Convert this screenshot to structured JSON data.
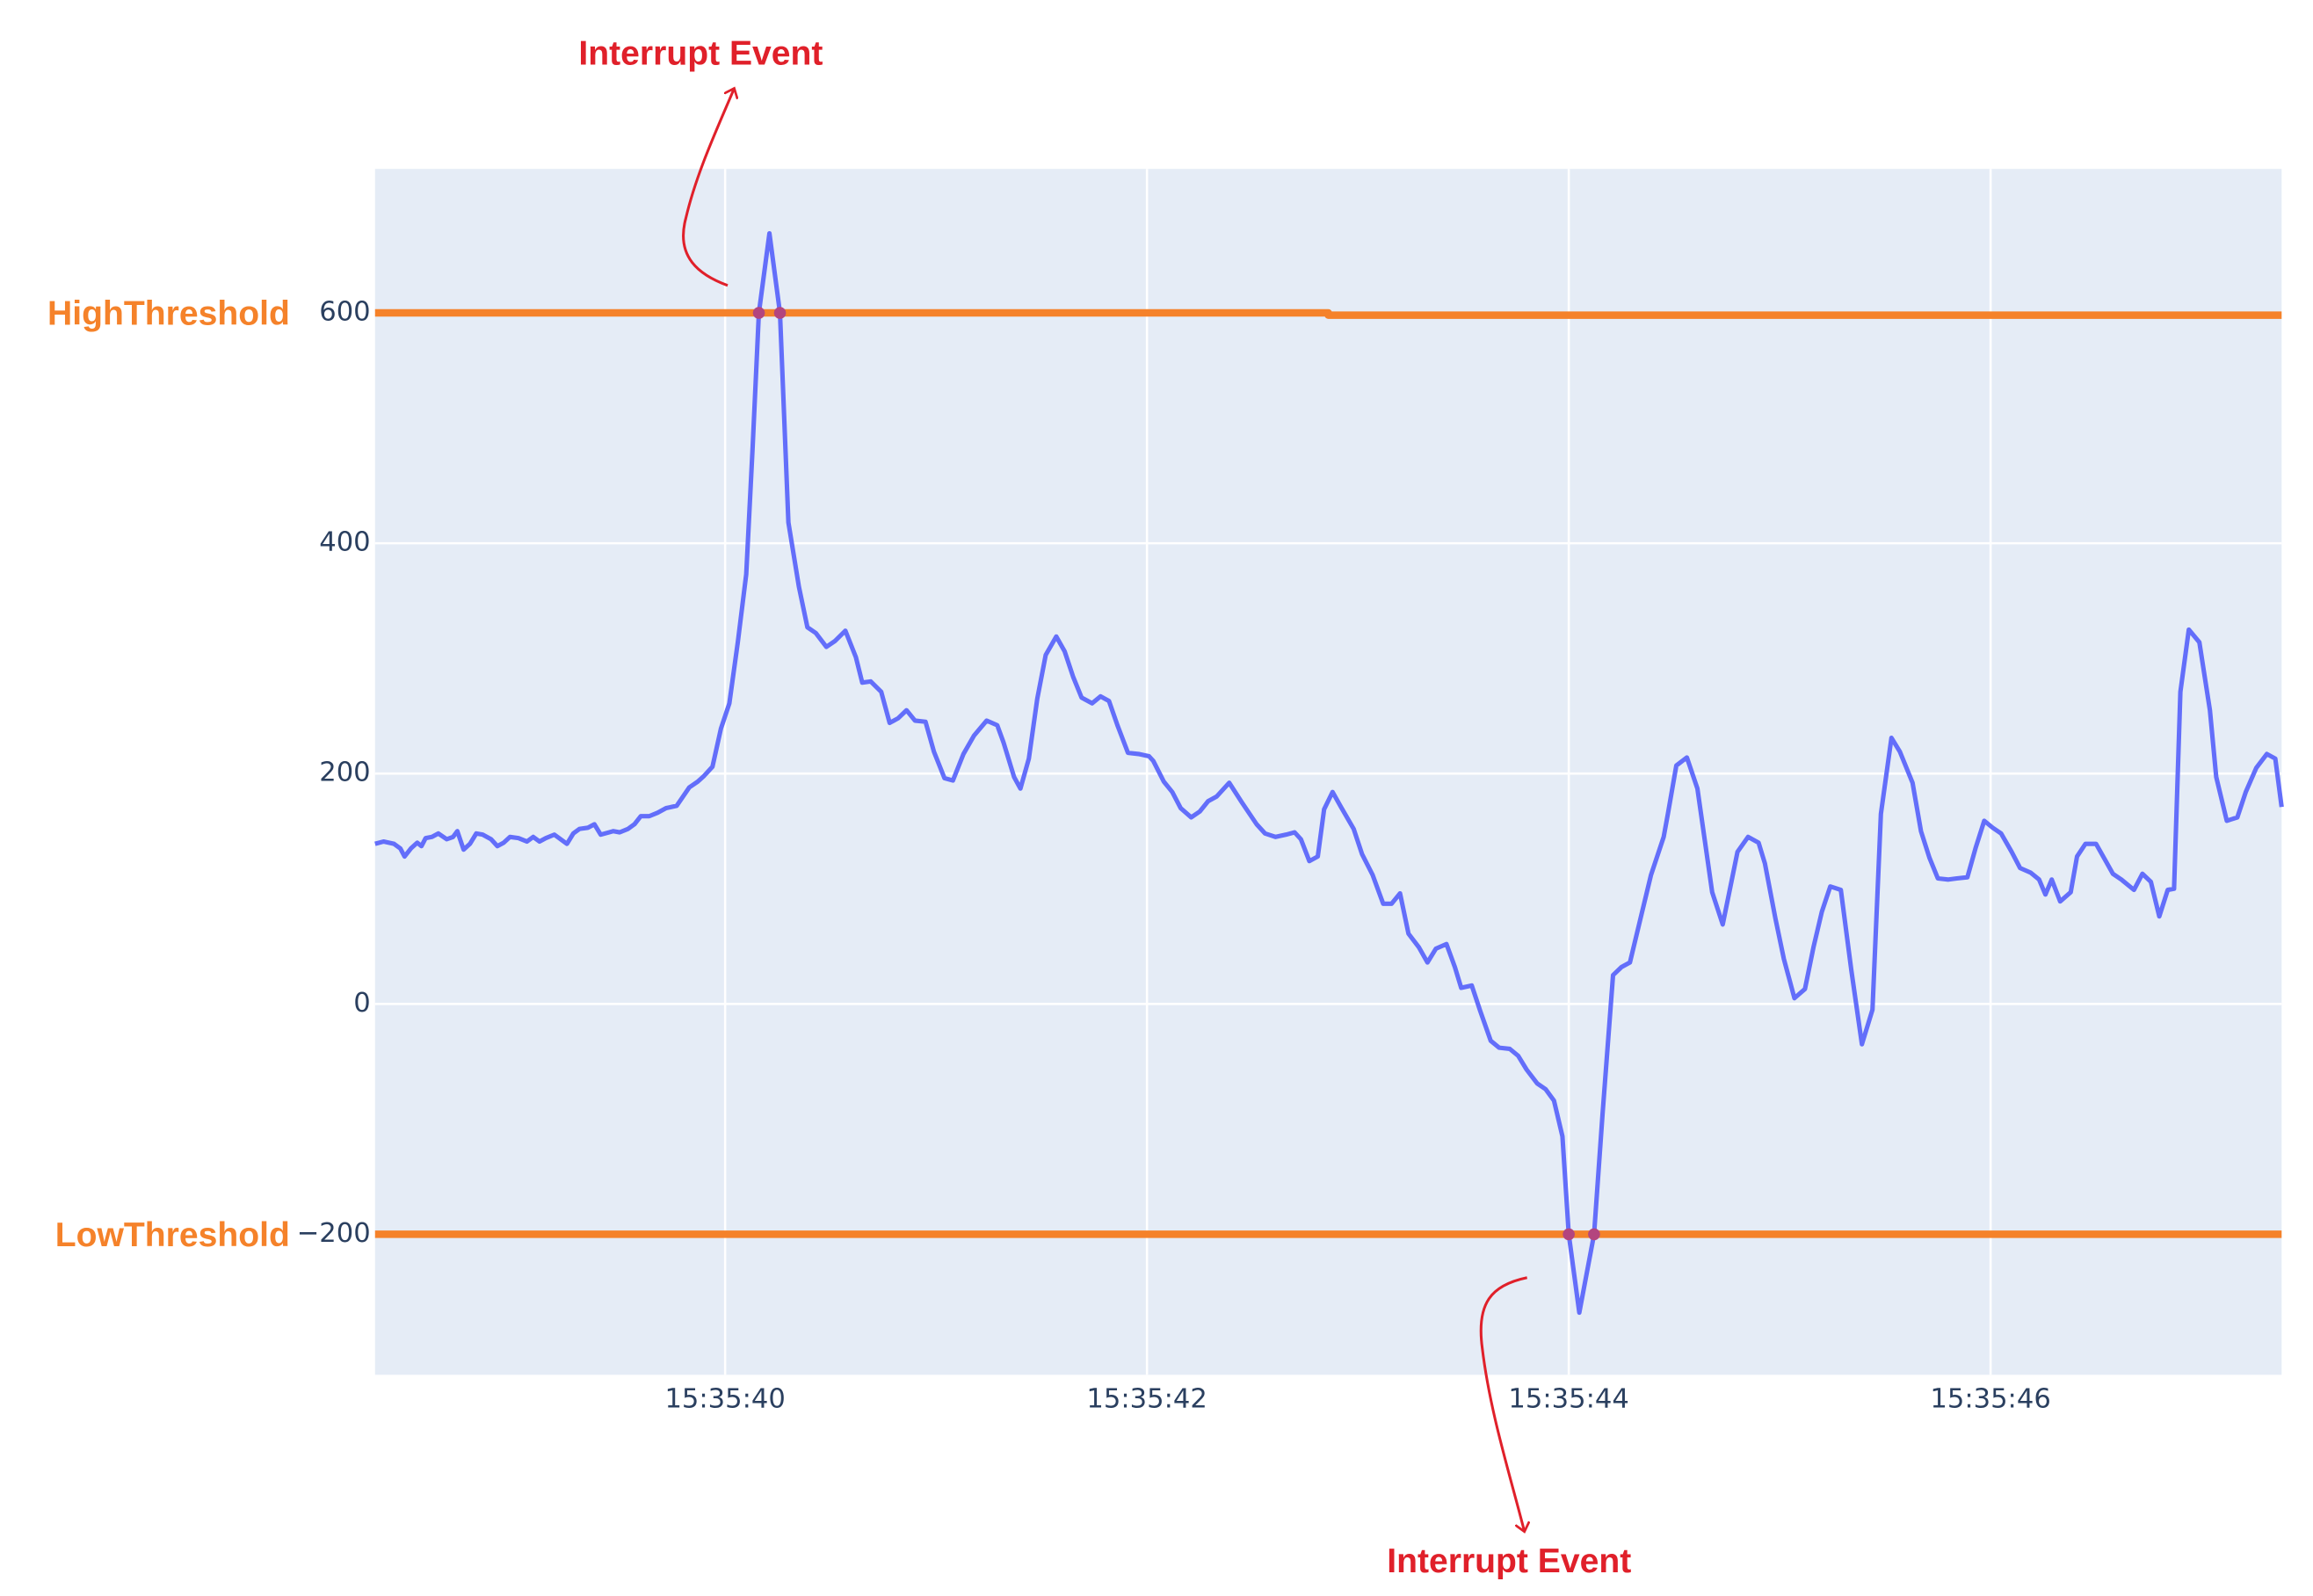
{
  "chart_data": {
    "type": "line",
    "xlim": [
      "15:35:38.34",
      "15:35:47.38"
    ],
    "xticks": [
      "15:35:40",
      "15:35:42",
      "15:35:44",
      "15:35:46"
    ],
    "ylim": [
      -322,
      725
    ],
    "yticks": [
      {
        "value": -200,
        "label": "−200"
      },
      0,
      200,
      400,
      600
    ],
    "grid": true,
    "plot_background": "#e5ecf6",
    "series": [
      {
        "name": "HighThreshold",
        "color": "#f5822a",
        "mode": "lines",
        "line_width": 5,
        "x": [
          "15:35:38.34",
          "15:35:42.86",
          "15:35:42.86",
          "15:35:47.38"
        ],
        "values": [
          600,
          600,
          598,
          598
        ]
      },
      {
        "name": "LowThreshold",
        "color": "#f5822a",
        "mode": "lines",
        "line_width": 5,
        "x": [
          "15:35:38.34",
          "15:35:47.38"
        ],
        "values": [
          -200,
          -200
        ]
      },
      {
        "color": "#636efa",
        "mode": "lines",
        "line_width": 3,
        "x": [
          "15:35:38.34",
          "15:35:38.38",
          "15:35:38.43",
          "15:35:38.46",
          "15:35:38.48",
          "15:35:38.51",
          "15:35:38.54",
          "15:35:38.56",
          "15:35:38.58",
          "15:35:38.61",
          "15:35:38.64",
          "15:35:38.68",
          "15:35:38.71",
          "15:35:38.73",
          "15:35:38.76",
          "15:35:38.79",
          "15:35:38.82",
          "15:35:38.85",
          "15:35:38.89",
          "15:35:38.92",
          "15:35:38.95",
          "15:35:38.98",
          "15:35:39.02",
          "15:35:39.06",
          "15:35:39.09",
          "15:35:39.12",
          "15:35:39.15",
          "15:35:39.19",
          "15:35:39.22",
          "15:35:39.25",
          "15:35:39.28",
          "15:35:39.31",
          "15:35:39.35",
          "15:35:39.38",
          "15:35:39.41",
          "15:35:39.45",
          "15:35:39.47",
          "15:35:39.50",
          "15:35:39.54",
          "15:35:39.57",
          "15:35:39.60",
          "15:35:39.64",
          "15:35:39.68",
          "15:35:39.72",
          "15:35:39.77",
          "15:35:39.80",
          "15:35:39.83",
          "15:35:39.87",
          "15:35:39.90",
          "15:35:39.94",
          "15:35:39.98",
          "15:35:40.02",
          "15:35:40.06",
          "15:35:40.10",
          "15:35:40.13",
          "15:35:40.16",
          "15:35:40.21",
          "15:35:40.26",
          "15:35:40.30",
          "15:35:40.35",
          "15:35:40.39",
          "15:35:40.43",
          "15:35:40.48",
          "15:35:40.52",
          "15:35:40.57",
          "15:35:40.62",
          "15:35:40.65",
          "15:35:40.69",
          "15:35:40.74",
          "15:35:40.78",
          "15:35:40.82",
          "15:35:40.86",
          "15:35:40.90",
          "15:35:40.95",
          "15:35:40.99",
          "15:35:41.04",
          "15:35:41.08",
          "15:35:41.13",
          "15:35:41.18",
          "15:35:41.24",
          "15:35:41.29",
          "15:35:41.32",
          "15:35:41.37",
          "15:35:41.40",
          "15:35:41.44",
          "15:35:41.48",
          "15:35:41.52",
          "15:35:41.57",
          "15:35:41.61",
          "15:35:41.65",
          "15:35:41.69",
          "15:35:41.74",
          "15:35:41.78",
          "15:35:41.82",
          "15:35:41.86",
          "15:35:41.91",
          "15:35:41.96",
          "15:35:42.01",
          "15:35:42.03",
          "15:35:42.08",
          "15:35:42.12",
          "15:35:42.16",
          "15:35:42.21",
          "15:35:42.25",
          "15:35:42.29",
          "15:35:42.33",
          "15:35:42.39",
          "15:35:42.45",
          "15:35:42.52",
          "15:35:42.56",
          "15:35:42.61",
          "15:35:42.66",
          "15:35:42.70",
          "15:35:42.73",
          "15:35:42.77",
          "15:35:42.81",
          "15:35:42.84",
          "15:35:42.88",
          "15:35:42.92",
          "15:35:42.98",
          "15:35:43.02",
          "15:35:43.07",
          "15:35:43.12",
          "15:35:43.16",
          "15:35:43.20",
          "15:35:43.24",
          "15:35:43.29",
          "15:35:43.33",
          "15:35:43.37",
          "15:35:43.42",
          "15:35:43.46",
          "15:35:43.49",
          "15:35:43.54",
          "15:35:43.58",
          "15:35:43.63",
          "15:35:43.67",
          "15:35:43.72",
          "15:35:43.76",
          "15:35:43.80",
          "15:35:43.85",
          "15:35:43.89",
          "15:35:43.93",
          "15:35:43.97",
          "15:35:44.00",
          "15:35:44.05",
          "15:35:44.12",
          "15:35:44.16",
          "15:35:44.21",
          "15:35:44.25",
          "15:35:44.29",
          "15:35:44.34",
          "15:35:44.39",
          "15:35:44.45",
          "15:35:44.47",
          "15:35:44.51",
          "15:35:44.56",
          "15:35:44.61",
          "15:35:44.68",
          "15:35:44.73",
          "15:35:44.76",
          "15:35:44.80",
          "15:35:44.85",
          "15:35:44.90",
          "15:35:44.93",
          "15:35:44.98",
          "15:35:45.02",
          "15:35:45.07",
          "15:35:45.12",
          "15:35:45.16",
          "15:35:45.20",
          "15:35:45.24",
          "15:35:45.29",
          "15:35:45.34",
          "15:35:45.39",
          "15:35:45.44",
          "15:35:45.48",
          "15:35:45.53",
          "15:35:45.57",
          "15:35:45.63",
          "15:35:45.67",
          "15:35:45.71",
          "15:35:45.75",
          "15:35:45.80",
          "15:35:45.84",
          "15:35:45.89",
          "15:35:45.93",
          "15:35:45.97",
          "15:35:46.01",
          "15:35:46.05",
          "15:35:46.10",
          "15:35:46.14",
          "15:35:46.19",
          "15:35:46.23",
          "15:35:46.26",
          "15:35:46.29",
          "15:35:46.33",
          "15:35:46.38",
          "15:35:46.41",
          "15:35:46.45",
          "15:35:46.50",
          "15:35:46.54",
          "15:35:46.58",
          "15:35:46.62",
          "15:35:46.68",
          "15:35:46.72",
          "15:35:46.76",
          "15:35:46.80",
          "15:35:46.84",
          "15:35:46.87",
          "15:35:46.90",
          "15:35:46.94",
          "15:35:46.99",
          "15:35:47.04",
          "15:35:47.07",
          "15:35:47.12",
          "15:35:47.17",
          "15:35:47.21",
          "15:35:47.26",
          "15:35:47.31",
          "15:35:47.35",
          "15:35:47.38"
        ],
        "values": [
          139,
          141,
          139,
          135,
          128,
          135,
          140,
          137,
          144,
          145,
          148,
          143,
          145,
          150,
          134,
          139,
          148,
          147,
          143,
          137,
          140,
          145,
          144,
          141,
          145,
          141,
          144,
          147,
          143,
          139,
          148,
          152,
          153,
          156,
          147,
          149,
          150,
          149,
          152,
          156,
          163,
          163,
          166,
          170,
          172,
          180,
          188,
          193,
          198,
          206,
          239,
          261,
          314,
          373,
          482,
          600,
          669,
          600,
          418,
          362,
          327,
          322,
          310,
          315,
          324,
          301,
          279,
          280,
          271,
          244,
          248,
          255,
          246,
          245,
          219,
          196,
          194,
          217,
          233,
          246,
          242,
          227,
          197,
          187,
          213,
          265,
          303,
          319,
          306,
          284,
          266,
          261,
          267,
          263,
          242,
          218,
          217,
          215,
          211,
          193,
          184,
          170,
          162,
          167,
          176,
          180,
          192,
          175,
          156,
          148,
          145,
          147,
          149,
          143,
          124,
          128,
          169,
          184,
          171,
          152,
          130,
          112,
          87,
          87,
          96,
          61,
          49,
          36,
          48,
          52,
          32,
          14,
          16,
          -6,
          -32,
          -38,
          -39,
          -45,
          -57,
          -69,
          -74,
          -84,
          -115,
          -200,
          -268,
          -200,
          -96,
          25,
          32,
          36,
          74,
          112,
          145,
          165,
          207,
          214,
          187,
          97,
          69,
          96,
          132,
          145,
          140,
          122,
          74,
          39,
          5,
          13,
          49,
          80,
          102,
          99,
          29,
          -35,
          -5,
          165,
          231,
          219,
          192,
          150,
          127,
          109,
          108,
          109,
          110,
          136,
          159,
          153,
          148,
          132,
          118,
          114,
          108,
          95,
          108,
          89,
          97,
          128,
          139,
          139,
          126,
          113,
          108,
          99,
          113,
          106,
          76,
          99,
          100,
          271,
          325,
          314,
          255,
          197,
          159,
          162,
          184,
          205,
          217,
          213,
          171
        ]
      },
      {
        "color": "#b3457e",
        "mode": "markers",
        "x": [
          "15:35:40.16",
          "15:35:40.26",
          "15:35:44.00",
          "15:35:44.12"
        ],
        "values": [
          600,
          600,
          -200,
          -200
        ]
      }
    ],
    "annotations": [
      {
        "text": "Interrupt Event"
      },
      {
        "text": "Interrupt Event"
      }
    ]
  }
}
